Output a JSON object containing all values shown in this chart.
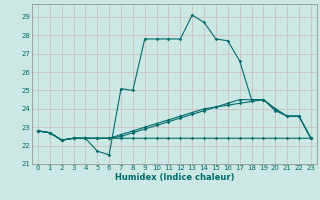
{
  "title": "",
  "xlabel": "Humidex (Indice chaleur)",
  "xlim": [
    -0.5,
    23.5
  ],
  "ylim": [
    21.0,
    29.7
  ],
  "yticks": [
    21,
    22,
    23,
    24,
    25,
    26,
    27,
    28,
    29
  ],
  "xticks": [
    0,
    1,
    2,
    3,
    4,
    5,
    6,
    7,
    8,
    9,
    10,
    11,
    12,
    13,
    14,
    15,
    16,
    17,
    18,
    19,
    20,
    21,
    22,
    23
  ],
  "bg_color": "#cce8e4",
  "line_color": "#006b6b",
  "grid_color": "#b8d8d4",
  "lines": [
    {
      "x": [
        0,
        1,
        2,
        3,
        4,
        5,
        6,
        7,
        8,
        9,
        10,
        11,
        12,
        13,
        14,
        15,
        16,
        17,
        18,
        19,
        20,
        21,
        22,
        23
      ],
      "y": [
        22.8,
        22.7,
        22.3,
        22.4,
        22.4,
        21.7,
        21.5,
        25.1,
        25.0,
        27.8,
        27.8,
        27.8,
        27.8,
        29.1,
        28.7,
        27.8,
        27.7,
        26.6,
        24.5,
        24.5,
        24.0,
        23.6,
        23.6,
        22.4
      ]
    },
    {
      "x": [
        0,
        1,
        2,
        3,
        4,
        5,
        6,
        7,
        8,
        9,
        10,
        11,
        12,
        13,
        14,
        15,
        16,
        17,
        18,
        19,
        20,
        21,
        22,
        23
      ],
      "y": [
        22.8,
        22.7,
        22.3,
        22.4,
        22.4,
        22.4,
        22.4,
        22.5,
        22.7,
        22.9,
        23.1,
        23.3,
        23.5,
        23.7,
        23.9,
        24.1,
        24.3,
        24.5,
        24.5,
        24.5,
        23.9,
        23.6,
        23.6,
        22.4
      ]
    },
    {
      "x": [
        0,
        1,
        2,
        3,
        4,
        5,
        6,
        7,
        8,
        9,
        10,
        11,
        12,
        13,
        14,
        15,
        16,
        17,
        18,
        19,
        20,
        21,
        22,
        23
      ],
      "y": [
        22.8,
        22.7,
        22.3,
        22.4,
        22.4,
        22.4,
        22.4,
        22.4,
        22.4,
        22.4,
        22.4,
        22.4,
        22.4,
        22.4,
        22.4,
        22.4,
        22.4,
        22.4,
        22.4,
        22.4,
        22.4,
        22.4,
        22.4,
        22.4
      ]
    },
    {
      "x": [
        0,
        1,
        2,
        3,
        4,
        5,
        6,
        7,
        8,
        9,
        10,
        11,
        12,
        13,
        14,
        15,
        16,
        17,
        18,
        19,
        20,
        21,
        22,
        23
      ],
      "y": [
        22.8,
        22.7,
        22.3,
        22.4,
        22.4,
        22.4,
        22.4,
        22.6,
        22.8,
        23.0,
        23.2,
        23.4,
        23.6,
        23.8,
        24.0,
        24.1,
        24.2,
        24.3,
        24.4,
        24.5,
        24.0,
        23.6,
        23.6,
        22.4
      ]
    }
  ]
}
